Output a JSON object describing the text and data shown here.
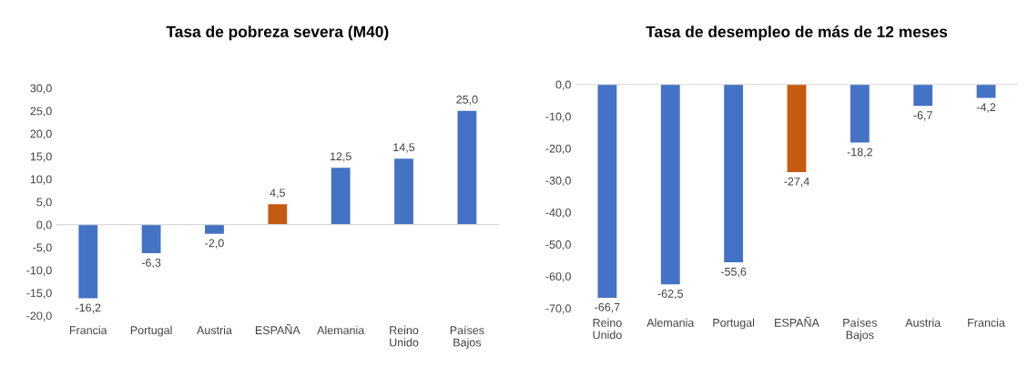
{
  "chart_data": [
    {
      "type": "bar",
      "title": "Tasa de pobreza severa (M40)",
      "categories": [
        "Francia",
        "Portugal",
        "Austria",
        "ESPAÑA",
        "Alemania",
        "Reino Unido",
        "Países Bajos"
      ],
      "values": [
        -16.2,
        -6.3,
        -2.0,
        4.5,
        12.5,
        14.5,
        25.0
      ],
      "colors": [
        "#4472c4",
        "#4472c4",
        "#4472c4",
        "#c55a11",
        "#4472c4",
        "#4472c4",
        "#4472c4"
      ],
      "value_labels": [
        "-16,2",
        "-6,3",
        "-2,0",
        "4,5",
        "12,5",
        "14,5",
        "25,0"
      ],
      "ylim": [
        -20,
        30
      ],
      "yticks": [
        {
          "value": -20,
          "label": "-20,0"
        },
        {
          "value": -15,
          "label": "-15,0"
        },
        {
          "value": -10,
          "label": "-10,0"
        },
        {
          "value": -5,
          "label": "-5,0"
        },
        {
          "value": 0,
          "label": "0,0"
        },
        {
          "value": 5,
          "label": "5,0"
        },
        {
          "value": 10,
          "label": "10,0"
        },
        {
          "value": 15,
          "label": "15,0"
        },
        {
          "value": 20,
          "label": "20,0"
        },
        {
          "value": 25,
          "label": "25,0"
        },
        {
          "value": 30,
          "label": "30,0"
        }
      ]
    },
    {
      "type": "bar",
      "title": "Tasa de desempleo de más de 12 meses",
      "categories": [
        "Reino Unido",
        "Alemania",
        "Portugal",
        "ESPAÑA",
        "Países Bajos",
        "Austria",
        "Francia"
      ],
      "values": [
        -66.7,
        -62.5,
        -55.6,
        -27.4,
        -18.2,
        -6.7,
        -4.2
      ],
      "colors": [
        "#4472c4",
        "#4472c4",
        "#4472c4",
        "#c55a11",
        "#4472c4",
        "#4472c4",
        "#4472c4"
      ],
      "value_labels": [
        "-66,7",
        "-62,5",
        "-55,6",
        "-27,4",
        "-18,2",
        "-6,7",
        "-4,2"
      ],
      "ylim": [
        -70,
        0
      ],
      "yticks": [
        {
          "value": -70,
          "label": "-70,0"
        },
        {
          "value": -60,
          "label": "-60,0"
        },
        {
          "value": -50,
          "label": "-50,0"
        },
        {
          "value": -40,
          "label": "-40,0"
        },
        {
          "value": -30,
          "label": "-30,0"
        },
        {
          "value": -20,
          "label": "-20,0"
        },
        {
          "value": -10,
          "label": "-10,0"
        },
        {
          "value": 0,
          "label": "0,0"
        }
      ]
    }
  ]
}
